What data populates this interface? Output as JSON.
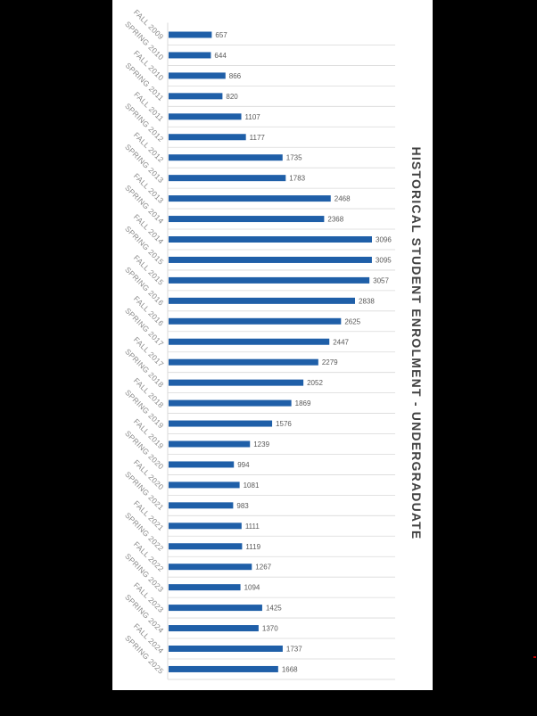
{
  "chart_data": {
    "type": "bar",
    "orientation": "horizontal",
    "title": "HISTORICAL STUDENT ENROLMENT - UNDERGRADUATE",
    "categories": [
      "FALL 2009",
      "SPRING 2010",
      "FALL 2010",
      "SPRING 2011",
      "FALL 2011",
      "SPRING 2012",
      "FALL 2012",
      "SPRING 2013",
      "FALL 2013",
      "SPRING 2014",
      "FALL 2014",
      "SPRING 2015",
      "FALL 2015",
      "SPRING 2016",
      "FALL 2016",
      "SPRING 2017",
      "FALL 2017",
      "SPRING 2018",
      "FALL 2018",
      "SPRING 2019",
      "FALL 2019",
      "SPRING 2020",
      "FALL 2020",
      "SPRING 2021",
      "FALL 2021",
      "SPRING 2022",
      "FALL 2022",
      "SPRING 2023",
      "FALL 2023",
      "SPRING 2024",
      "FALL 2024",
      "SPRING 2025"
    ],
    "values": [
      657,
      644,
      866,
      820,
      1107,
      1177,
      1735,
      1783,
      2468,
      2368,
      3096,
      3095,
      3057,
      2838,
      2625,
      2447,
      2279,
      2052,
      1869,
      1576,
      1239,
      994,
      1081,
      983,
      1111,
      1119,
      1267,
      1094,
      1425,
      1370,
      1737,
      1668
    ],
    "xlim": [
      0,
      3400
    ],
    "grid": true,
    "legend": "none",
    "bar_color": "#1f5fa8",
    "grid_color": "#d9d9d9"
  }
}
